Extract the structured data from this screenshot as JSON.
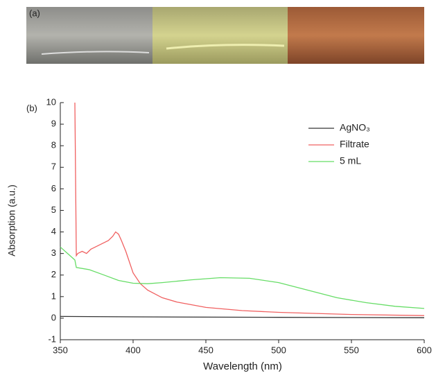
{
  "chart_data": {
    "type": "line",
    "annotations": [
      "(a)",
      "(b)"
    ],
    "x_label": "Wavelength (nm)",
    "y_label": "Absorption (a.u.)",
    "xlim": [
      350,
      600
    ],
    "xticks": [
      350,
      400,
      450,
      500,
      550,
      600
    ],
    "ylim": [
      -1,
      10
    ],
    "yticks": [
      -1,
      0,
      1,
      2,
      3,
      4,
      5,
      6,
      7,
      8,
      9,
      10
    ],
    "legend": "upper-right",
    "series": [
      {
        "name": "AgNO₃",
        "color": "#333333",
        "x": [
          350,
          400,
          450,
          500,
          550,
          600
        ],
        "values": [
          0.08,
          0.06,
          0.05,
          0.04,
          0.03,
          0.02
        ]
      },
      {
        "name": "Filtrate",
        "color": "#f06060",
        "x": [
          360,
          361,
          362,
          365,
          368,
          371,
          374,
          377,
          380,
          383,
          386,
          388,
          390,
          392,
          395,
          400,
          405,
          410,
          420,
          430,
          450,
          475,
          500,
          550,
          600
        ],
        "values": [
          10,
          2.9,
          3.0,
          3.1,
          3.0,
          3.2,
          3.3,
          3.4,
          3.5,
          3.6,
          3.8,
          4.0,
          3.9,
          3.6,
          3.1,
          2.1,
          1.6,
          1.3,
          0.95,
          0.75,
          0.5,
          0.35,
          0.27,
          0.17,
          0.12
        ]
      },
      {
        "name": "5 mL",
        "color": "#66dd66",
        "x": [
          350,
          355,
          360,
          361,
          370,
          380,
          390,
          400,
          410,
          420,
          440,
          460,
          480,
          500,
          520,
          540,
          560,
          580,
          600
        ],
        "values": [
          3.3,
          3.0,
          2.7,
          2.35,
          2.25,
          2.0,
          1.75,
          1.62,
          1.6,
          1.65,
          1.78,
          1.88,
          1.85,
          1.65,
          1.3,
          0.95,
          0.72,
          0.55,
          0.45
        ]
      }
    ]
  }
}
